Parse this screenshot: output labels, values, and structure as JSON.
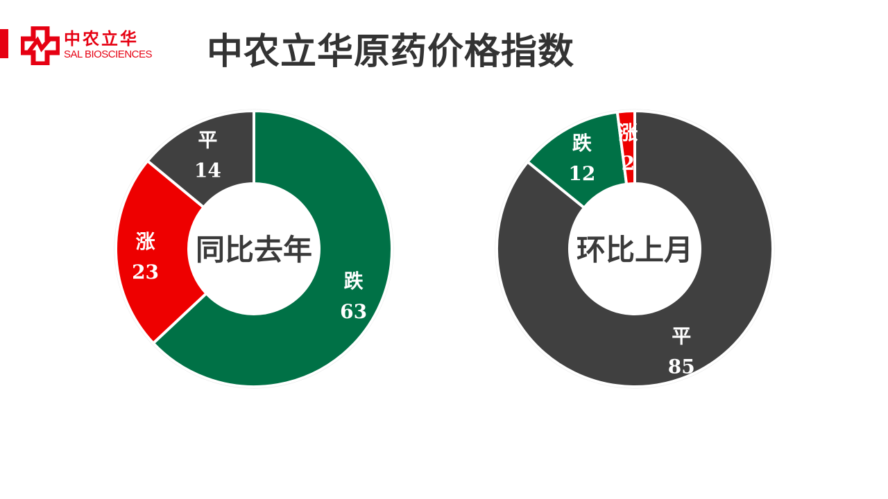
{
  "header": {
    "title": "中农立华原药价格指数",
    "logo_cn": "中农立华",
    "logo_en": "SAL BIOSCIENCES",
    "brand_color": "#e60012"
  },
  "chart_data": [
    {
      "type": "pie",
      "variant": "donut",
      "center_label": "同比去年",
      "slices": [
        {
          "label": "跌",
          "value": 63,
          "color": "#007146"
        },
        {
          "label": "涨",
          "value": 23,
          "color": "#ee0000"
        },
        {
          "label": "平",
          "value": 14,
          "color": "#404040"
        }
      ],
      "start": "top",
      "direction": "clockwise"
    },
    {
      "type": "pie",
      "variant": "donut",
      "center_label": "环比上月",
      "slices": [
        {
          "label": "平",
          "value": 85,
          "color": "#404040"
        },
        {
          "label": "跌",
          "value": 12,
          "color": "#007146"
        },
        {
          "label": "涨",
          "value": 2,
          "color": "#ee0000"
        }
      ],
      "start": "top",
      "direction": "clockwise"
    }
  ]
}
